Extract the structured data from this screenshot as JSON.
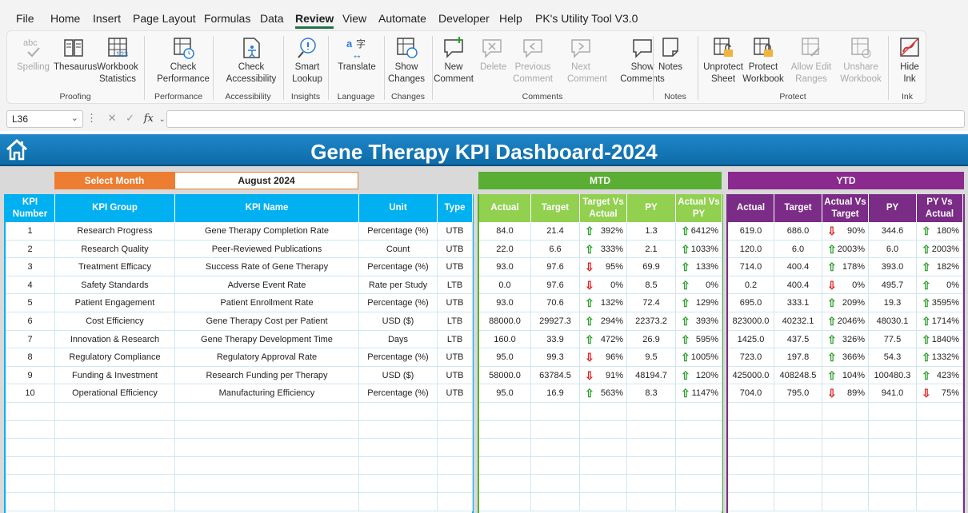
{
  "menu": [
    "File",
    "Home",
    "Insert",
    "Page Layout",
    "Formulas",
    "Data",
    "Review",
    "View",
    "Automate",
    "Developer",
    "Help",
    "PK's Utility Tool V3.0"
  ],
  "active_menu": "Review",
  "ribbon": {
    "buttons": [
      {
        "icon": "spelling-icon",
        "label": "Spelling",
        "disabled": true
      },
      {
        "icon": "thesaurus-icon",
        "label": "Thesaurus",
        "disabled": false
      },
      {
        "icon": "workbook-statistics-icon",
        "label": "Workbook Statistics",
        "disabled": false
      },
      {
        "icon": "check-performance-icon",
        "label": "Check Performance",
        "disabled": false
      },
      {
        "icon": "check-accessibility-icon",
        "label": "Check Accessibility",
        "disabled": false
      },
      {
        "icon": "smart-lookup-icon",
        "label": "Smart Lookup",
        "disabled": false
      },
      {
        "icon": "translate-icon",
        "label": "Translate",
        "disabled": false
      },
      {
        "icon": "show-changes-icon",
        "label": "Show Changes",
        "disabled": false
      },
      {
        "icon": "new-comment-icon",
        "label": "New Comment",
        "disabled": false
      },
      {
        "icon": "delete-comment-icon",
        "label": "Delete",
        "disabled": true
      },
      {
        "icon": "previous-comment-icon",
        "label": "Previous Comment",
        "disabled": true
      },
      {
        "icon": "next-comment-icon",
        "label": "Next Comment",
        "disabled": true
      },
      {
        "icon": "show-comments-icon",
        "label": "Show Comments",
        "disabled": false
      },
      {
        "icon": "notes-icon",
        "label": "Notes",
        "disabled": false
      },
      {
        "icon": "unprotect-sheet-icon",
        "label": "Unprotect Sheet",
        "disabled": false
      },
      {
        "icon": "protect-workbook-icon",
        "label": "Protect Workbook",
        "disabled": false
      },
      {
        "icon": "allow-edit-ranges-icon",
        "label": "Allow Edit Ranges",
        "disabled": true
      },
      {
        "icon": "unshare-workbook-icon",
        "label": "Unshare Workbook",
        "disabled": true
      },
      {
        "icon": "hide-ink-icon",
        "label": "Hide Ink",
        "disabled": false
      }
    ],
    "groups": [
      "Proofing",
      "Performance",
      "Accessibility",
      "Insights",
      "Language",
      "Changes",
      "Comments",
      "Notes",
      "Protect",
      "Ink"
    ]
  },
  "formula_bar": {
    "cell_ref": "L36",
    "fx": "fx",
    "value": ""
  },
  "dashboard": {
    "title": "Gene Therapy KPI Dashboard-2024",
    "select_month_label": "Select Month",
    "selected_month": "August 2024",
    "mtd_label": "MTD",
    "ytd_label": "YTD",
    "left_headers": [
      "KPI Number",
      "KPI Group",
      "KPI Name",
      "Unit",
      "Type"
    ],
    "mtd_headers": [
      "Actual",
      "Target",
      "Target Vs Actual",
      "PY",
      "Actual Vs PY"
    ],
    "ytd_headers": [
      "Actual",
      "Target",
      "Actual Vs Target",
      "PY",
      "PY Vs Actual"
    ],
    "colors": {
      "blue_header": "#00b0f0",
      "green_header": "#92d050",
      "purple_header": "#7b2c86",
      "orange": "#ed7d31",
      "up": "#2e9e2e",
      "down": "#e0201c"
    },
    "rows": [
      {
        "num": "1",
        "group": "Research Progress",
        "name": "Gene Therapy Completion Rate",
        "unit": "Percentage (%)",
        "type": "UTB",
        "mtd": {
          "actual": "84.0",
          "target": "21.4",
          "tva": "392%",
          "tva_dir": "up",
          "py": "1.3",
          "avp": "6412%",
          "avp_dir": "up"
        },
        "ytd": {
          "actual": "619.0",
          "target": "686.0",
          "avt": "90%",
          "avt_dir": "down",
          "py": "344.6",
          "pva": "180%",
          "pva_dir": "up"
        }
      },
      {
        "num": "2",
        "group": "Research Quality",
        "name": "Peer-Reviewed Publications",
        "unit": "Count",
        "type": "UTB",
        "mtd": {
          "actual": "22.0",
          "target": "6.6",
          "tva": "333%",
          "tva_dir": "up",
          "py": "2.1",
          "avp": "1033%",
          "avp_dir": "up"
        },
        "ytd": {
          "actual": "120.0",
          "target": "6.0",
          "avt": "2003%",
          "avt_dir": "up",
          "py": "6.0",
          "pva": "2003%",
          "pva_dir": "up"
        }
      },
      {
        "num": "3",
        "group": "Treatment Efficacy",
        "name": "Success Rate of Gene Therapy",
        "unit": "Percentage (%)",
        "type": "UTB",
        "mtd": {
          "actual": "93.0",
          "target": "97.6",
          "tva": "95%",
          "tva_dir": "down",
          "py": "69.9",
          "avp": "133%",
          "avp_dir": "up"
        },
        "ytd": {
          "actual": "714.0",
          "target": "400.4",
          "avt": "178%",
          "avt_dir": "up",
          "py": "393.0",
          "pva": "182%",
          "pva_dir": "up"
        }
      },
      {
        "num": "4",
        "group": "Safety Standards",
        "name": "Adverse Event Rate",
        "unit": "Rate per Study",
        "type": "LTB",
        "mtd": {
          "actual": "0.0",
          "target": "97.6",
          "tva": "0%",
          "tva_dir": "down",
          "py": "8.5",
          "avp": "0%",
          "avp_dir": "up"
        },
        "ytd": {
          "actual": "0.2",
          "target": "400.4",
          "avt": "0%",
          "avt_dir": "down",
          "py": "495.7",
          "pva": "0%",
          "pva_dir": "up"
        }
      },
      {
        "num": "5",
        "group": "Patient Engagement",
        "name": "Patient Enrollment Rate",
        "unit": "Percentage (%)",
        "type": "UTB",
        "mtd": {
          "actual": "93.0",
          "target": "70.6",
          "tva": "132%",
          "tva_dir": "up",
          "py": "72.4",
          "avp": "129%",
          "avp_dir": "up"
        },
        "ytd": {
          "actual": "695.0",
          "target": "333.1",
          "avt": "209%",
          "avt_dir": "up",
          "py": "19.3",
          "pva": "3595%",
          "pva_dir": "up"
        }
      },
      {
        "num": "6",
        "group": "Cost Efficiency",
        "name": "Gene Therapy Cost per Patient",
        "unit": "USD ($)",
        "type": "LTB",
        "mtd": {
          "actual": "88000.0",
          "target": "29927.3",
          "tva": "294%",
          "tva_dir": "up",
          "py": "22373.2",
          "avp": "393%",
          "avp_dir": "up"
        },
        "ytd": {
          "actual": "823000.0",
          "target": "40232.1",
          "avt": "2046%",
          "avt_dir": "up",
          "py": "48030.1",
          "pva": "1714%",
          "pva_dir": "up"
        }
      },
      {
        "num": "7",
        "group": "Innovation & Research",
        "name": "Gene Therapy Development Time",
        "unit": "Days",
        "type": "LTB",
        "mtd": {
          "actual": "160.0",
          "target": "33.9",
          "tva": "472%",
          "tva_dir": "up",
          "py": "26.9",
          "avp": "595%",
          "avp_dir": "up"
        },
        "ytd": {
          "actual": "1425.0",
          "target": "437.5",
          "avt": "326%",
          "avt_dir": "up",
          "py": "77.5",
          "pva": "1840%",
          "pva_dir": "up"
        }
      },
      {
        "num": "8",
        "group": "Regulatory Compliance",
        "name": "Regulatory Approval Rate",
        "unit": "Percentage (%)",
        "type": "UTB",
        "mtd": {
          "actual": "95.0",
          "target": "99.3",
          "tva": "96%",
          "tva_dir": "down",
          "py": "9.5",
          "avp": "1005%",
          "avp_dir": "up"
        },
        "ytd": {
          "actual": "723.0",
          "target": "197.8",
          "avt": "366%",
          "avt_dir": "up",
          "py": "54.3",
          "pva": "1332%",
          "pva_dir": "up"
        }
      },
      {
        "num": "9",
        "group": "Funding & Investment",
        "name": "Research Funding per Therapy",
        "unit": "USD ($)",
        "type": "UTB",
        "mtd": {
          "actual": "58000.0",
          "target": "63784.5",
          "tva": "91%",
          "tva_dir": "down",
          "py": "48194.7",
          "avp": "120%",
          "avp_dir": "up"
        },
        "ytd": {
          "actual": "425000.0",
          "target": "408248.5",
          "avt": "104%",
          "avt_dir": "up",
          "py": "100480.3",
          "pva": "423%",
          "pva_dir": "up"
        }
      },
      {
        "num": "10",
        "group": "Operational Efficiency",
        "name": "Manufacturing Efficiency",
        "unit": "Percentage (%)",
        "type": "UTB",
        "mtd": {
          "actual": "95.0",
          "target": "16.9",
          "tva": "563%",
          "tva_dir": "up",
          "py": "8.3",
          "avp": "1147%",
          "avp_dir": "up"
        },
        "ytd": {
          "actual": "704.0",
          "target": "795.0",
          "avt": "89%",
          "avt_dir": "down",
          "py": "941.0",
          "pva": "75%",
          "pva_dir": "down"
        }
      }
    ]
  }
}
